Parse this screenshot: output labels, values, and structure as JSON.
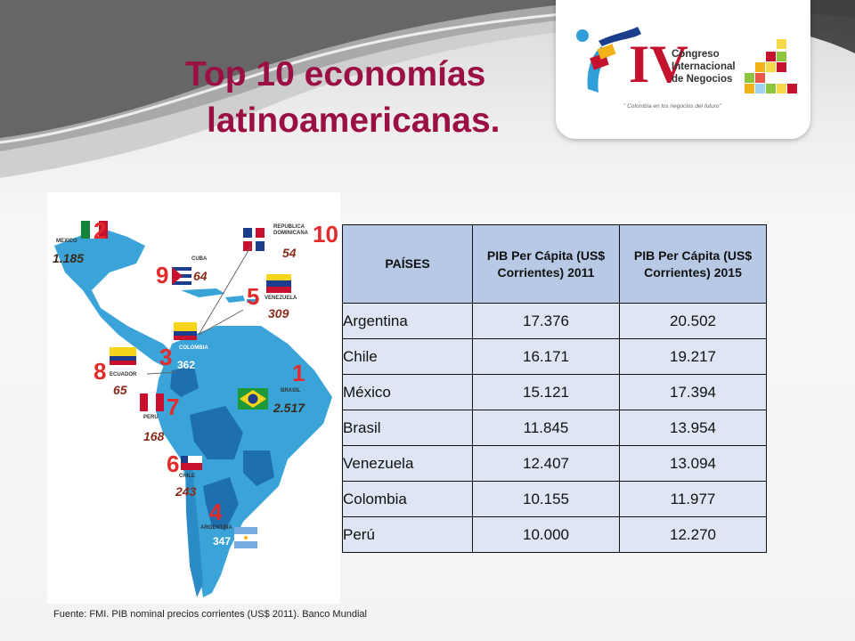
{
  "title": {
    "line1": "Top 10 economías",
    "line2": "latinoamericanas."
  },
  "logo": {
    "roman": "IV",
    "line1": "Congreso",
    "line2": "Internacional",
    "line3": "de Negocios",
    "slogan": "\" Colombia en los negocios del futuro\""
  },
  "map": {
    "countries": [
      {
        "rank": "2",
        "name": "MEXICO",
        "value": "1.185"
      },
      {
        "rank": "10",
        "name": "REPUBLICA DOMINICANA",
        "value": "54"
      },
      {
        "rank": "9",
        "name": "CUBA",
        "value": "64"
      },
      {
        "rank": "5",
        "name": "VENEZUELA",
        "value": "309"
      },
      {
        "rank": "3",
        "name": "COLOMBIA",
        "value": "362"
      },
      {
        "rank": "8",
        "name": "ECUADOR",
        "value": "65"
      },
      {
        "rank": "1",
        "name": "BRASIL",
        "value": "2.517"
      },
      {
        "rank": "7",
        "name": "PERU",
        "value": "168"
      },
      {
        "rank": "6",
        "name": "CHILE",
        "value": "243"
      },
      {
        "rank": "4",
        "name": "ARGENTINA",
        "value": "347"
      }
    ]
  },
  "table": {
    "headers": [
      "PAÍSES",
      "PIB Per Cápita (US$ Corrientes) 2011",
      "PIB Per Cápita (US$ Corrientes) 2015"
    ],
    "rows": [
      [
        "Argentina",
        "17.376",
        "20.502"
      ],
      [
        "Chile",
        "16.171",
        "19.217"
      ],
      [
        "México",
        "15.121",
        "17.394"
      ],
      [
        "Brasil",
        "11.845",
        "13.954"
      ],
      [
        "Venezuela",
        "12.407",
        "13.094"
      ],
      [
        "Colombia",
        "10.155",
        "11.977"
      ],
      [
        "Perú",
        "10.000",
        "12.270"
      ]
    ]
  },
  "source": "Fuente: FMI. PIB nominal precios corrientes (US$ 2011). Banco Mundial",
  "colors": {
    "title": "#9b1044",
    "rank": "#e32b2b",
    "table_header": "#b8c9e6",
    "table_cell": "#dfe6f3",
    "map_sea": "#ffffff",
    "map_land": "#3aa3d8",
    "map_land_dark": "#1e6fb0"
  }
}
